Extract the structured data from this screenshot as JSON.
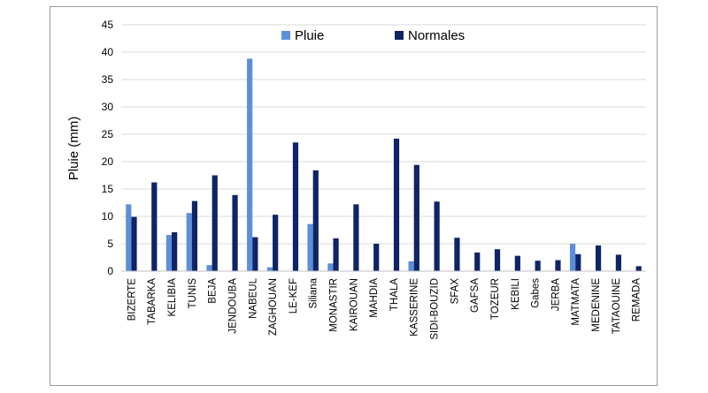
{
  "chart_data": {
    "type": "bar",
    "title": "",
    "xlabel": "",
    "ylabel": "Pluie (mm)",
    "ylim": [
      0,
      45
    ],
    "yticks": [
      0,
      5,
      10,
      15,
      20,
      25,
      30,
      35,
      40,
      45
    ],
    "grid": true,
    "legend_position": "top-center",
    "categories": [
      "BIZERTE",
      "TABARKA",
      "KELIBIA",
      "TUNIS",
      "BEJA",
      "JENDOUBA",
      "NABEUL",
      "ZAGHOUAN",
      "LE-KEF",
      "Siliana",
      "MONASTIR",
      "KAIROUAN",
      "MAHDIA",
      "THALA",
      "KASSERINE",
      "SIDI-BOUZID",
      "SFAX",
      "GAFSA",
      "TOZEUR",
      "KEBILI",
      "Gabes",
      "JERBA",
      "MATMATA",
      "MEDENINE",
      "TATAOUINE",
      "REMADA"
    ],
    "series": [
      {
        "name": "Pluie",
        "color": "#5b8fd9",
        "values": [
          12.2,
          0,
          6.6,
          10.6,
          1.1,
          0,
          38.8,
          0.7,
          0,
          8.6,
          1.4,
          0,
          0,
          0,
          1.8,
          0,
          0,
          0,
          0,
          0,
          0,
          0,
          5.0,
          0,
          0,
          0
        ]
      },
      {
        "name": "Normales",
        "color": "#0f2466",
        "values": [
          9.9,
          16.2,
          7.1,
          12.8,
          17.5,
          13.9,
          6.2,
          10.3,
          23.5,
          18.4,
          6.0,
          12.2,
          5.0,
          24.2,
          19.4,
          12.7,
          6.1,
          3.4,
          4.0,
          2.8,
          1.9,
          2.0,
          3.1,
          4.7,
          3.0,
          0.9
        ]
      }
    ]
  }
}
